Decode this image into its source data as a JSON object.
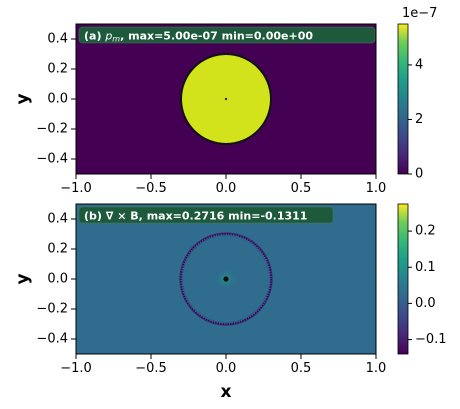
{
  "chart_data": [
    {
      "type": "heatmap",
      "panel_label": "(a)",
      "title_prefix": "(a) ",
      "title_symbol": "p",
      "title_subscript": "m",
      "title_suffix": ", max=5.00e-07 min=0.00e+00",
      "field_max": 5e-07,
      "field_min": 0.0,
      "ylabel": "y",
      "xlabel": "",
      "xlim": [
        -1.0,
        1.0
      ],
      "ylim": [
        -0.5,
        0.5
      ],
      "xticks": [
        "−1.0",
        "−0.5",
        "0.0",
        "0.5",
        "1.0"
      ],
      "yticks": [
        "−0.4",
        "−0.2",
        "0.0",
        "0.2",
        "0.4"
      ],
      "features": {
        "background_value": 0.0,
        "disk_center": [
          0.0,
          0.0
        ],
        "disk_radius": 0.3,
        "disk_value": 5e-07
      },
      "colorbar": {
        "range": [
          0.0,
          5.5e-07
        ],
        "ticks": [
          "0",
          "2",
          "4"
        ],
        "tick_values": [
          0.0,
          2e-07,
          4e-07
        ],
        "offset_text": "1e−7"
      },
      "colormap": "viridis"
    },
    {
      "type": "heatmap",
      "panel_label": "(b)",
      "title": "(b) ∇ × B, max=0.2716 min=-0.1311",
      "field_max": 0.2716,
      "field_min": -0.1311,
      "ylabel": "y",
      "xlabel": "x",
      "xlim": [
        -1.0,
        1.0
      ],
      "ylim": [
        -0.5,
        0.5
      ],
      "xticks": [
        "−1.0",
        "−0.5",
        "0.0",
        "0.5",
        "1.0"
      ],
      "yticks": [
        "−0.4",
        "−0.2",
        "0.0",
        "0.2",
        "0.4"
      ],
      "features": {
        "background_value": 0.0,
        "ring_center": [
          0.0,
          0.0
        ],
        "ring_radius": 0.3,
        "ring_value": -0.13,
        "center_value": 0.27
      },
      "colorbar": {
        "range": [
          -0.14,
          0.275
        ],
        "ticks": [
          "−0.1",
          "0.0",
          "0.1",
          "0.2"
        ],
        "tick_values": [
          -0.1,
          0.0,
          0.1,
          0.2
        ]
      },
      "colormap": "viridis"
    }
  ],
  "colors": {
    "viridis_low": "#440154",
    "viridis_mid": "#21918c",
    "viridis_high": "#fde725",
    "title_box": "#1d5a3b",
    "title_text": "#ffffff"
  }
}
